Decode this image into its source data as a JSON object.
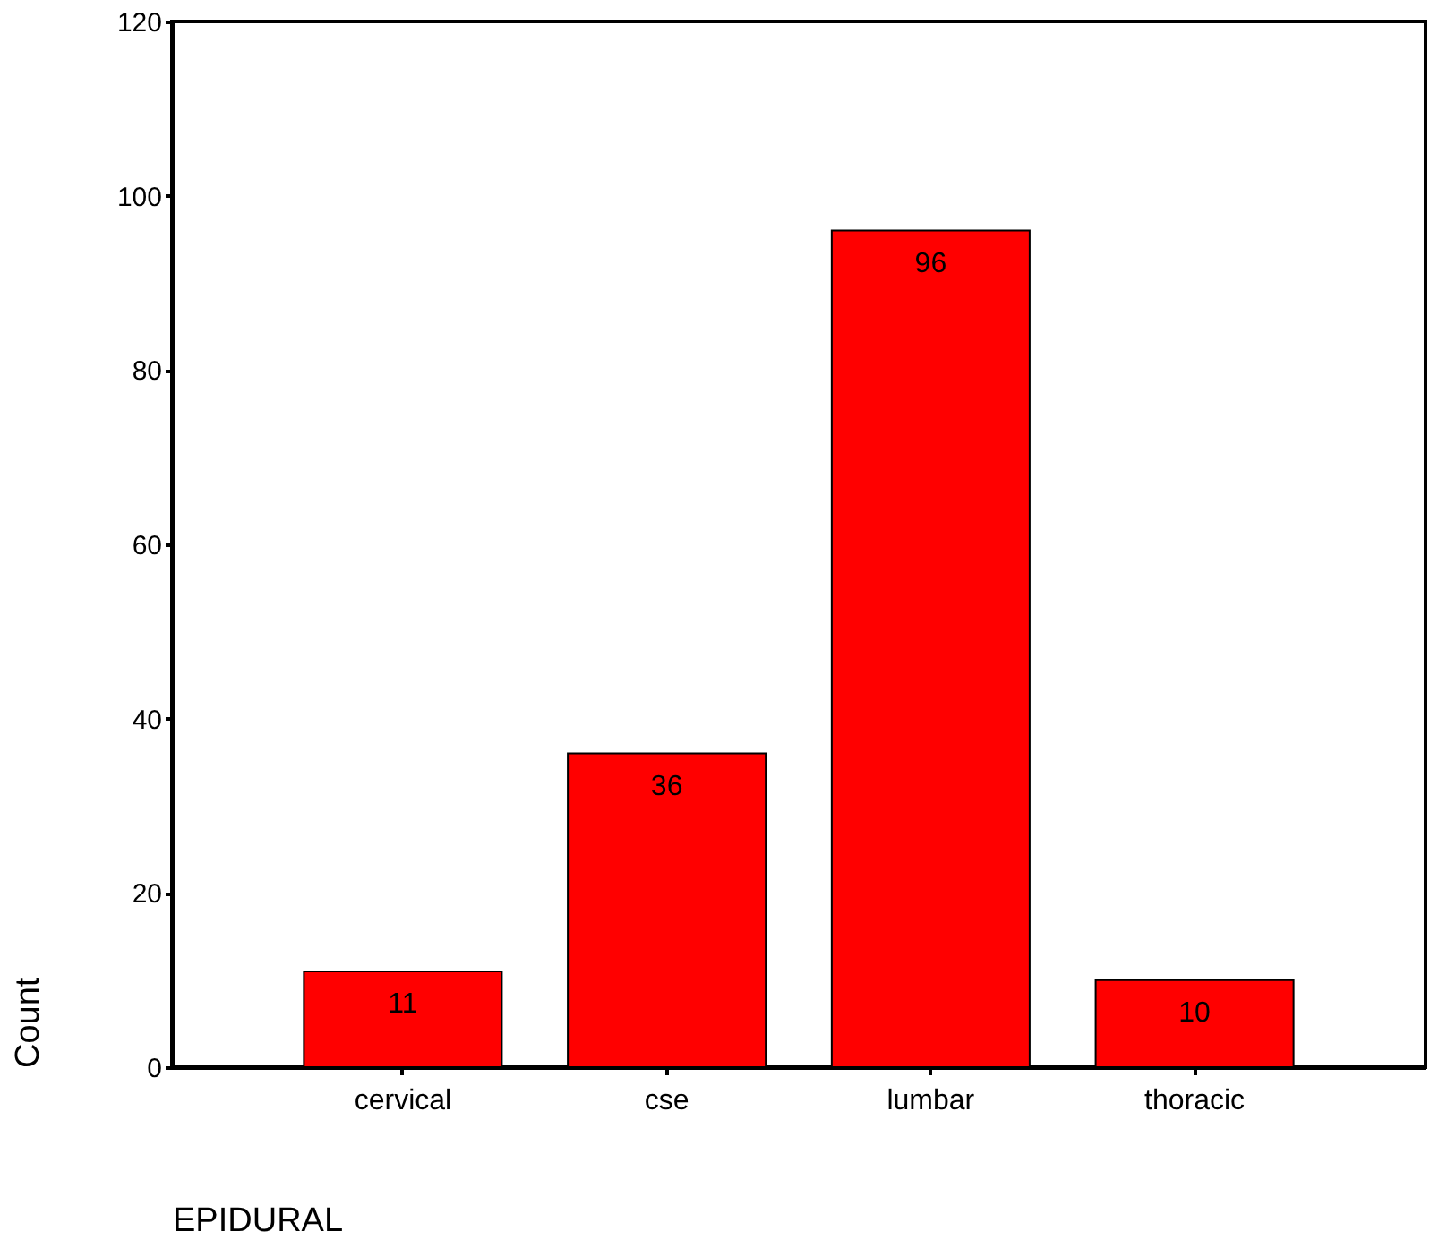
{
  "chart_data": {
    "type": "bar",
    "categories": [
      "cervical",
      "cse",
      "lumbar",
      "thoracic"
    ],
    "values": [
      11,
      36,
      96,
      10
    ],
    "color": "#ff0000",
    "xlabel": "EPIDURAL",
    "ylabel": "Count",
    "ylim": [
      0,
      120
    ],
    "yticks": [
      0,
      20,
      40,
      60,
      80,
      100,
      120
    ],
    "grid": false,
    "data_labels": true
  }
}
